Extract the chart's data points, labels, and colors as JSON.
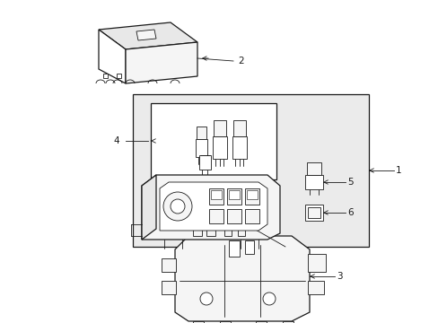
{
  "background_color": "#ffffff",
  "lc": "#1a1a1a",
  "lc_light": "#555555",
  "fill_white": "#ffffff",
  "fill_light": "#f5f5f5",
  "fill_mid": "#e8e8e8",
  "fill_dark": "#d8d8d8",
  "fill_box": "#ebebeb",
  "figsize": [
    4.89,
    3.6
  ],
  "dpi": 100
}
